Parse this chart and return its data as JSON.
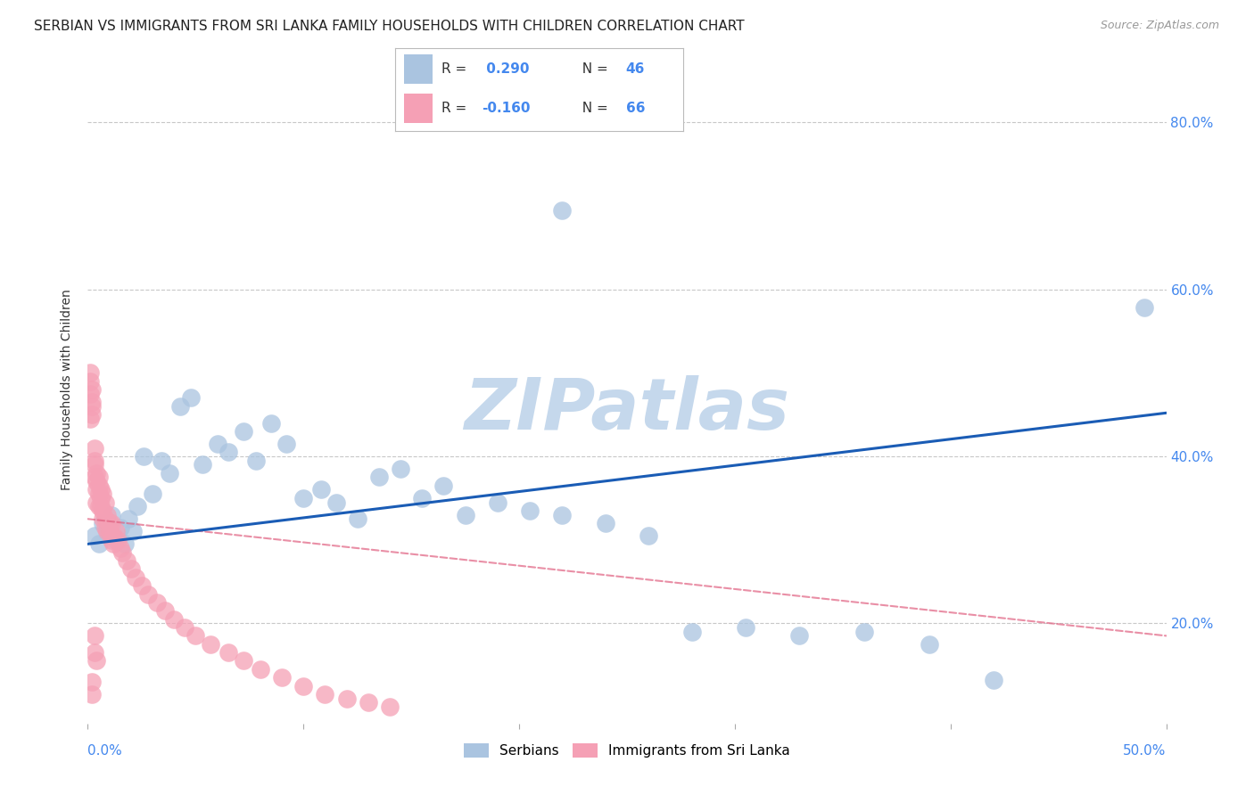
{
  "title": "SERBIAN VS IMMIGRANTS FROM SRI LANKA FAMILY HOUSEHOLDS WITH CHILDREN CORRELATION CHART",
  "source": "Source: ZipAtlas.com",
  "ylabel": "Family Households with Children",
  "xlim": [
    0.0,
    0.5
  ],
  "ylim": [
    0.08,
    0.88
  ],
  "yticks": [
    0.2,
    0.4,
    0.6,
    0.8
  ],
  "ytick_labels": [
    "20.0%",
    "40.0%",
    "60.0%",
    "80.0%"
  ],
  "xtick_left_label": "0.0%",
  "xtick_right_label": "50.0%",
  "series1_name": "Serbians",
  "series1_color": "#aac4e0",
  "series1_line_color": "#1a5cb5",
  "series1_R": 0.29,
  "series1_N": 46,
  "series2_name": "Immigrants from Sri Lanka",
  "series2_color": "#f5a0b5",
  "series2_line_color": "#e06080",
  "series2_R": -0.16,
  "series2_N": 66,
  "background_color": "#ffffff",
  "grid_color": "#cccccc",
  "watermark": "ZIPatlas",
  "watermark_color": "#c5d8ec",
  "title_fontsize": 11,
  "axis_label_fontsize": 10,
  "tick_fontsize": 11,
  "legend_color": "#4488ee",
  "serb_line_y_start": 0.295,
  "serb_line_y_end": 0.452,
  "sri_line_y_start": 0.325,
  "sri_line_y_end": 0.185,
  "sri_line_x_end": 0.5
}
